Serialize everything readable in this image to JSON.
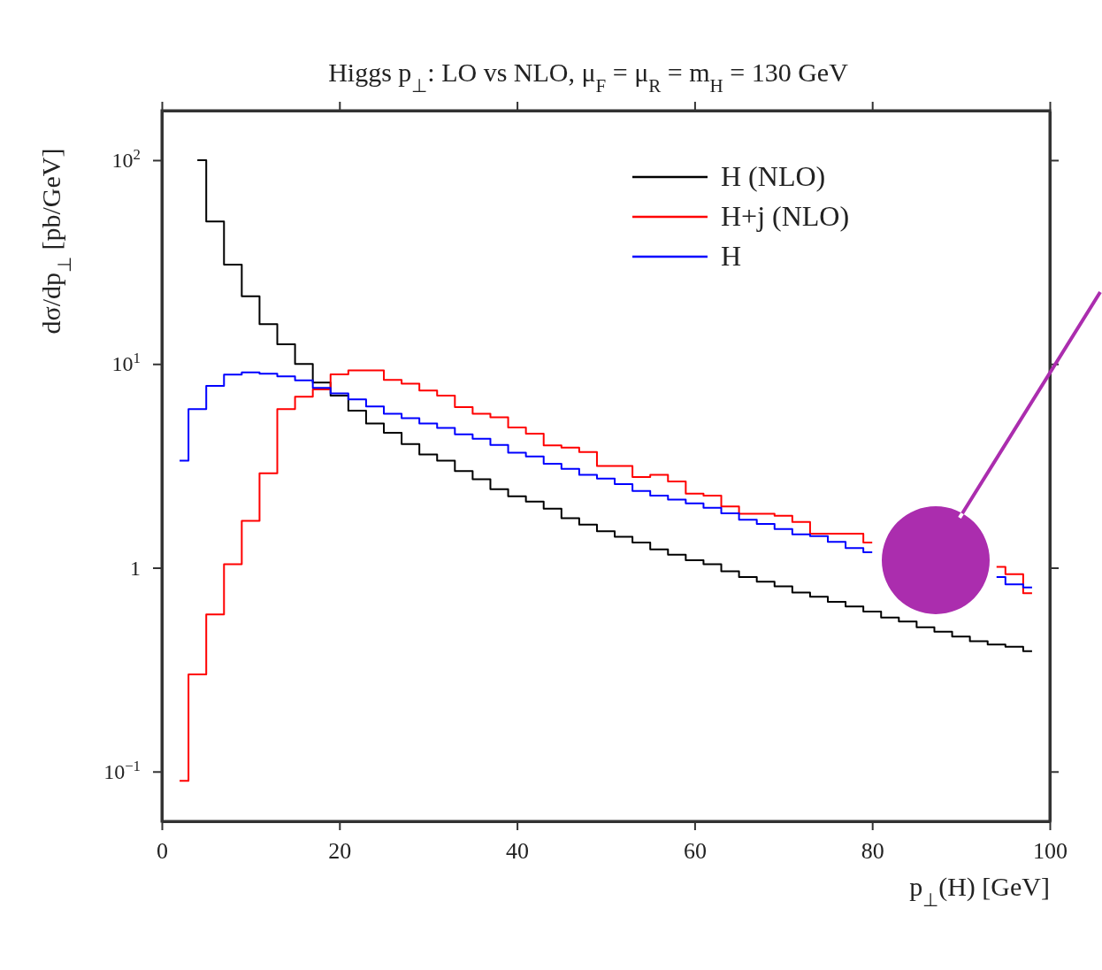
{
  "chart_data": {
    "type": "step",
    "title": "Higgs p$_{⊥}$: LO vs NLO, μ$_{F}$ = μ$_{R}$ = m$_{H}$ = 130 GeV",
    "xlabel": "p$_{⊥}$(H) [GeV]",
    "ylabel": "dσ/dp$_{⊥}$ [pb/GeV]",
    "x": [
      2,
      4,
      6,
      8,
      10,
      12,
      14,
      16,
      18,
      20,
      22,
      24,
      26,
      28,
      30,
      32,
      34,
      36,
      38,
      40,
      42,
      44,
      46,
      48,
      50,
      52,
      54,
      56,
      58,
      60,
      62,
      64,
      66,
      68,
      70,
      72,
      74,
      76,
      78,
      80,
      82,
      84,
      86,
      88,
      90,
      92,
      94,
      96,
      98
    ],
    "series": [
      {
        "name": "H (NLO)",
        "color": "#000000",
        "x": [
          4,
          6,
          8,
          10,
          12,
          14,
          16,
          18,
          20,
          22,
          24,
          26,
          28,
          30,
          32,
          34,
          36,
          38,
          40,
          42,
          44,
          46,
          48,
          50,
          52,
          54,
          56,
          58,
          60,
          62,
          64,
          66,
          68,
          70,
          72,
          74,
          76,
          78,
          80,
          82,
          84,
          86,
          88,
          90,
          92,
          94,
          96,
          98
        ],
        "values": [
          100,
          50,
          30.7,
          21.5,
          15.7,
          12.5,
          10,
          8.1,
          7.0,
          5.9,
          5.1,
          4.6,
          4.05,
          3.6,
          3.35,
          2.98,
          2.72,
          2.43,
          2.24,
          2.11,
          1.95,
          1.75,
          1.63,
          1.51,
          1.42,
          1.33,
          1.23,
          1.16,
          1.09,
          1.04,
          0.96,
          0.9,
          0.855,
          0.81,
          0.756,
          0.72,
          0.68,
          0.645,
          0.61,
          0.57,
          0.545,
          0.51,
          0.486,
          0.46,
          0.436,
          0.42,
          0.41,
          0.39
        ]
      },
      {
        "name": "H+j (NLO)",
        "color": "#ff0000",
        "values": [
          0.09,
          0.3,
          0.59,
          1.04,
          1.7,
          2.91,
          6.0,
          6.9,
          7.5,
          8.9,
          9.3,
          9.3,
          8.35,
          8.0,
          7.4,
          7.0,
          6.14,
          5.7,
          5.48,
          4.88,
          4.55,
          3.98,
          3.89,
          3.7,
          3.16,
          3.16,
          2.79,
          2.86,
          2.65,
          2.31,
          2.26,
          2.0,
          1.84,
          1.84,
          1.8,
          1.68,
          1.47,
          1.47,
          1.47,
          1.33,
          null,
          null,
          null,
          null,
          null,
          null,
          1.01,
          0.93,
          0.75
        ]
      },
      {
        "name": "H",
        "color": "#0000ff",
        "values": [
          3.35,
          6.0,
          7.8,
          8.87,
          9.1,
          8.95,
          8.7,
          8.3,
          7.64,
          7.17,
          6.7,
          6.18,
          5.7,
          5.42,
          5.1,
          4.86,
          4.52,
          4.3,
          4.0,
          3.67,
          3.52,
          3.24,
          3.06,
          2.86,
          2.74,
          2.57,
          2.38,
          2.26,
          2.16,
          2.07,
          1.97,
          1.85,
          1.72,
          1.64,
          1.55,
          1.46,
          1.43,
          1.34,
          1.25,
          1.19,
          null,
          null,
          null,
          null,
          null,
          null,
          0.9,
          0.83,
          0.8
        ]
      }
    ],
    "xlim": [
      0,
      100
    ],
    "xticks": [
      0,
      20,
      40,
      60,
      80,
      100
    ],
    "ylim": [
      0.057,
      175
    ],
    "yticks": [
      {
        "value": 0.1,
        "label": "10$^{−1}$"
      },
      1,
      {
        "value": 10,
        "label": "10$^{1}$"
      },
      {
        "value": 100,
        "label": "10$^{2}$"
      }
    ],
    "log": true,
    "legend": "top right"
  }
}
